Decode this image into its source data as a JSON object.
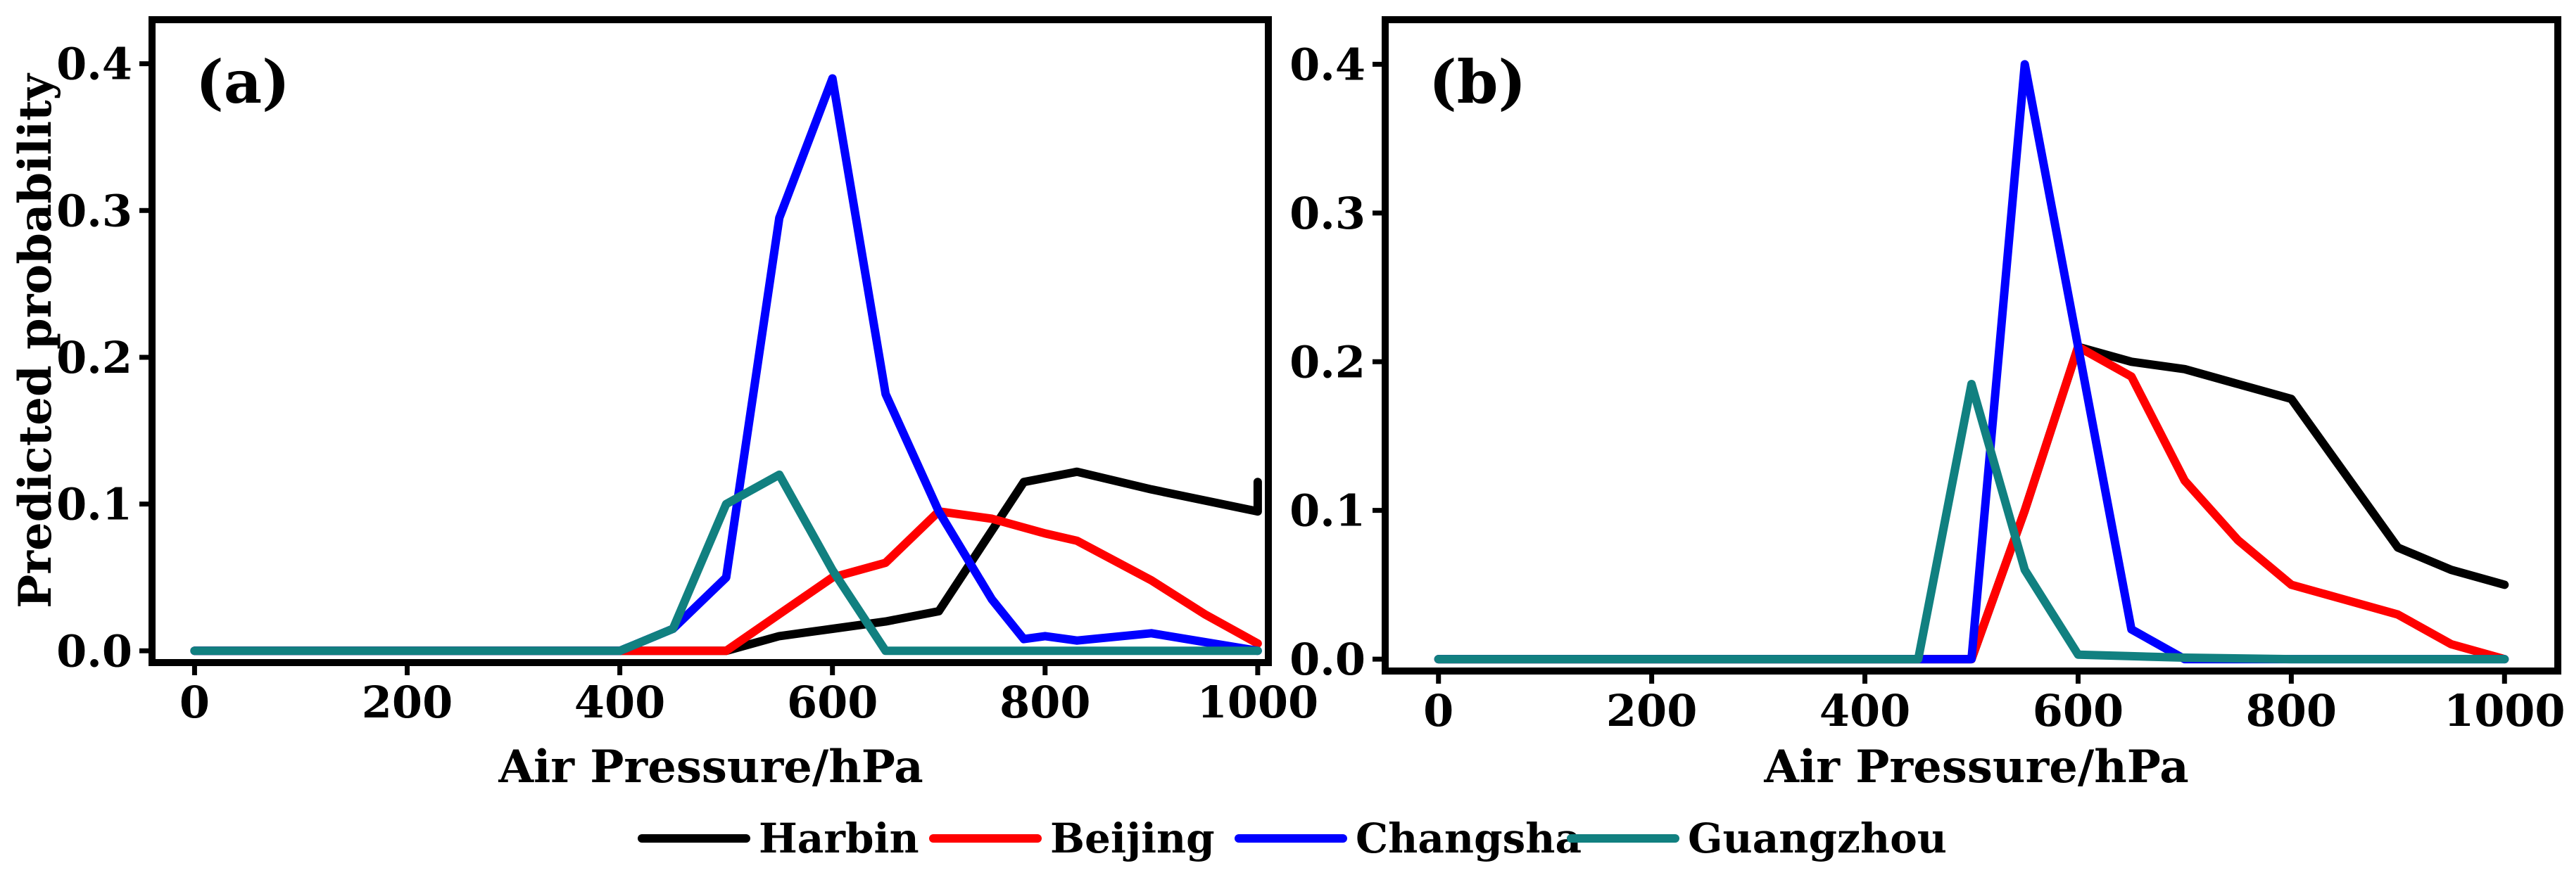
{
  "chart_data": [
    {
      "type": "line",
      "panel_label": "(a)",
      "xlabel": "Air Pressure/hPa",
      "ylabel": "Predicted probability",
      "xlim": [
        -40,
        1010
      ],
      "ylim": [
        -0.008,
        0.43
      ],
      "xticks": [
        0,
        200,
        400,
        600,
        800,
        1000
      ],
      "xtick_labels": [
        "0",
        "200",
        "400",
        "600",
        "800",
        "1000"
      ],
      "yticks": [
        0.0,
        0.1,
        0.2,
        0.3,
        0.4
      ],
      "ytick_labels": [
        "0.0",
        "0.1",
        "0.2",
        "0.3",
        "0.4"
      ],
      "series": [
        {
          "name": "Harbin",
          "color": "#000000",
          "x": [
            0,
            100,
            200,
            300,
            400,
            450,
            500,
            550,
            600,
            650,
            700,
            780,
            830,
            900,
            1000,
            1000
          ],
          "values": [
            0,
            0,
            0,
            0,
            0,
            0,
            0,
            0.01,
            0.015,
            0.02,
            0.027,
            0.115,
            0.122,
            0.11,
            0.095,
            0.115
          ]
        },
        {
          "name": "Beijing",
          "color": "#ff0000",
          "x": [
            0,
            100,
            200,
            300,
            400,
            450,
            500,
            550,
            600,
            650,
            700,
            750,
            800,
            830,
            900,
            950,
            1000
          ],
          "values": [
            0,
            0,
            0,
            0,
            0,
            0,
            0,
            0.025,
            0.05,
            0.06,
            0.095,
            0.09,
            0.08,
            0.075,
            0.048,
            0.025,
            0.005
          ]
        },
        {
          "name": "Changsha",
          "color": "#0000ff",
          "x": [
            0,
            100,
            200,
            300,
            400,
            450,
            500,
            550,
            600,
            650,
            700,
            750,
            780,
            800,
            830,
            900,
            1000
          ],
          "values": [
            0,
            0,
            0,
            0,
            0,
            0.015,
            0.05,
            0.295,
            0.39,
            0.175,
            0.095,
            0.035,
            0.008,
            0.01,
            0.007,
            0.012,
            0
          ]
        },
        {
          "name": "Guangzhou",
          "color": "#118080",
          "x": [
            0,
            100,
            200,
            300,
            400,
            450,
            500,
            550,
            600,
            650,
            700,
            800,
            900,
            1000
          ],
          "values": [
            0,
            0,
            0,
            0,
            0,
            0.015,
            0.1,
            0.12,
            0.055,
            0,
            0,
            0,
            0,
            0
          ]
        }
      ]
    },
    {
      "type": "line",
      "panel_label": "(b)",
      "xlabel": "Air Pressure/hPa",
      "ylabel": "",
      "xlim": [
        -50,
        1050
      ],
      "ylim": [
        -0.008,
        0.43
      ],
      "xticks": [
        0,
        200,
        400,
        600,
        800,
        1000
      ],
      "xtick_labels": [
        "0",
        "200",
        "400",
        "600",
        "800",
        "1000"
      ],
      "yticks": [
        0.0,
        0.1,
        0.2,
        0.3,
        0.4
      ],
      "ytick_labels": [
        "0.0",
        "0.1",
        "0.2",
        "0.3",
        "0.4"
      ],
      "series": [
        {
          "name": "Harbin",
          "color": "#000000",
          "x": [
            0,
            100,
            200,
            300,
            400,
            450,
            500,
            550,
            600,
            650,
            700,
            750,
            800,
            850,
            900,
            950,
            1000
          ],
          "values": [
            0,
            0,
            0,
            0,
            0,
            0,
            0,
            0.1,
            0.21,
            0.2,
            0.195,
            0.185,
            0.175,
            0.125,
            0.075,
            0.06,
            0.05
          ]
        },
        {
          "name": "Beijing",
          "color": "#ff0000",
          "x": [
            0,
            100,
            200,
            300,
            400,
            450,
            500,
            550,
            600,
            650,
            700,
            750,
            800,
            850,
            900,
            950,
            1000
          ],
          "values": [
            0,
            0,
            0,
            0,
            0,
            0,
            0,
            0.1,
            0.21,
            0.19,
            0.12,
            0.08,
            0.05,
            0.04,
            0.03,
            0.01,
            0
          ]
        },
        {
          "name": "Changsha",
          "color": "#0000ff",
          "x": [
            0,
            100,
            200,
            300,
            400,
            450,
            500,
            550,
            600,
            650,
            700,
            800,
            900,
            1000
          ],
          "values": [
            0,
            0,
            0,
            0,
            0,
            0,
            0,
            0.4,
            0.21,
            0.02,
            0,
            0,
            0,
            0
          ]
        },
        {
          "name": "Guangzhou",
          "color": "#118080",
          "x": [
            0,
            100,
            200,
            300,
            400,
            450,
            500,
            550,
            600,
            650,
            700,
            800,
            900,
            1000
          ],
          "values": [
            0,
            0,
            0,
            0,
            0,
            0,
            0.185,
            0.06,
            0.003,
            0.002,
            0.001,
            0,
            0,
            0
          ]
        }
      ]
    }
  ],
  "legend": {
    "items": [
      {
        "label": "Harbin",
        "color": "#000000"
      },
      {
        "label": "Beijing",
        "color": "#ff0000"
      },
      {
        "label": "Changsha",
        "color": "#0000ff"
      },
      {
        "label": "Guangzhou",
        "color": "#118080"
      }
    ]
  }
}
